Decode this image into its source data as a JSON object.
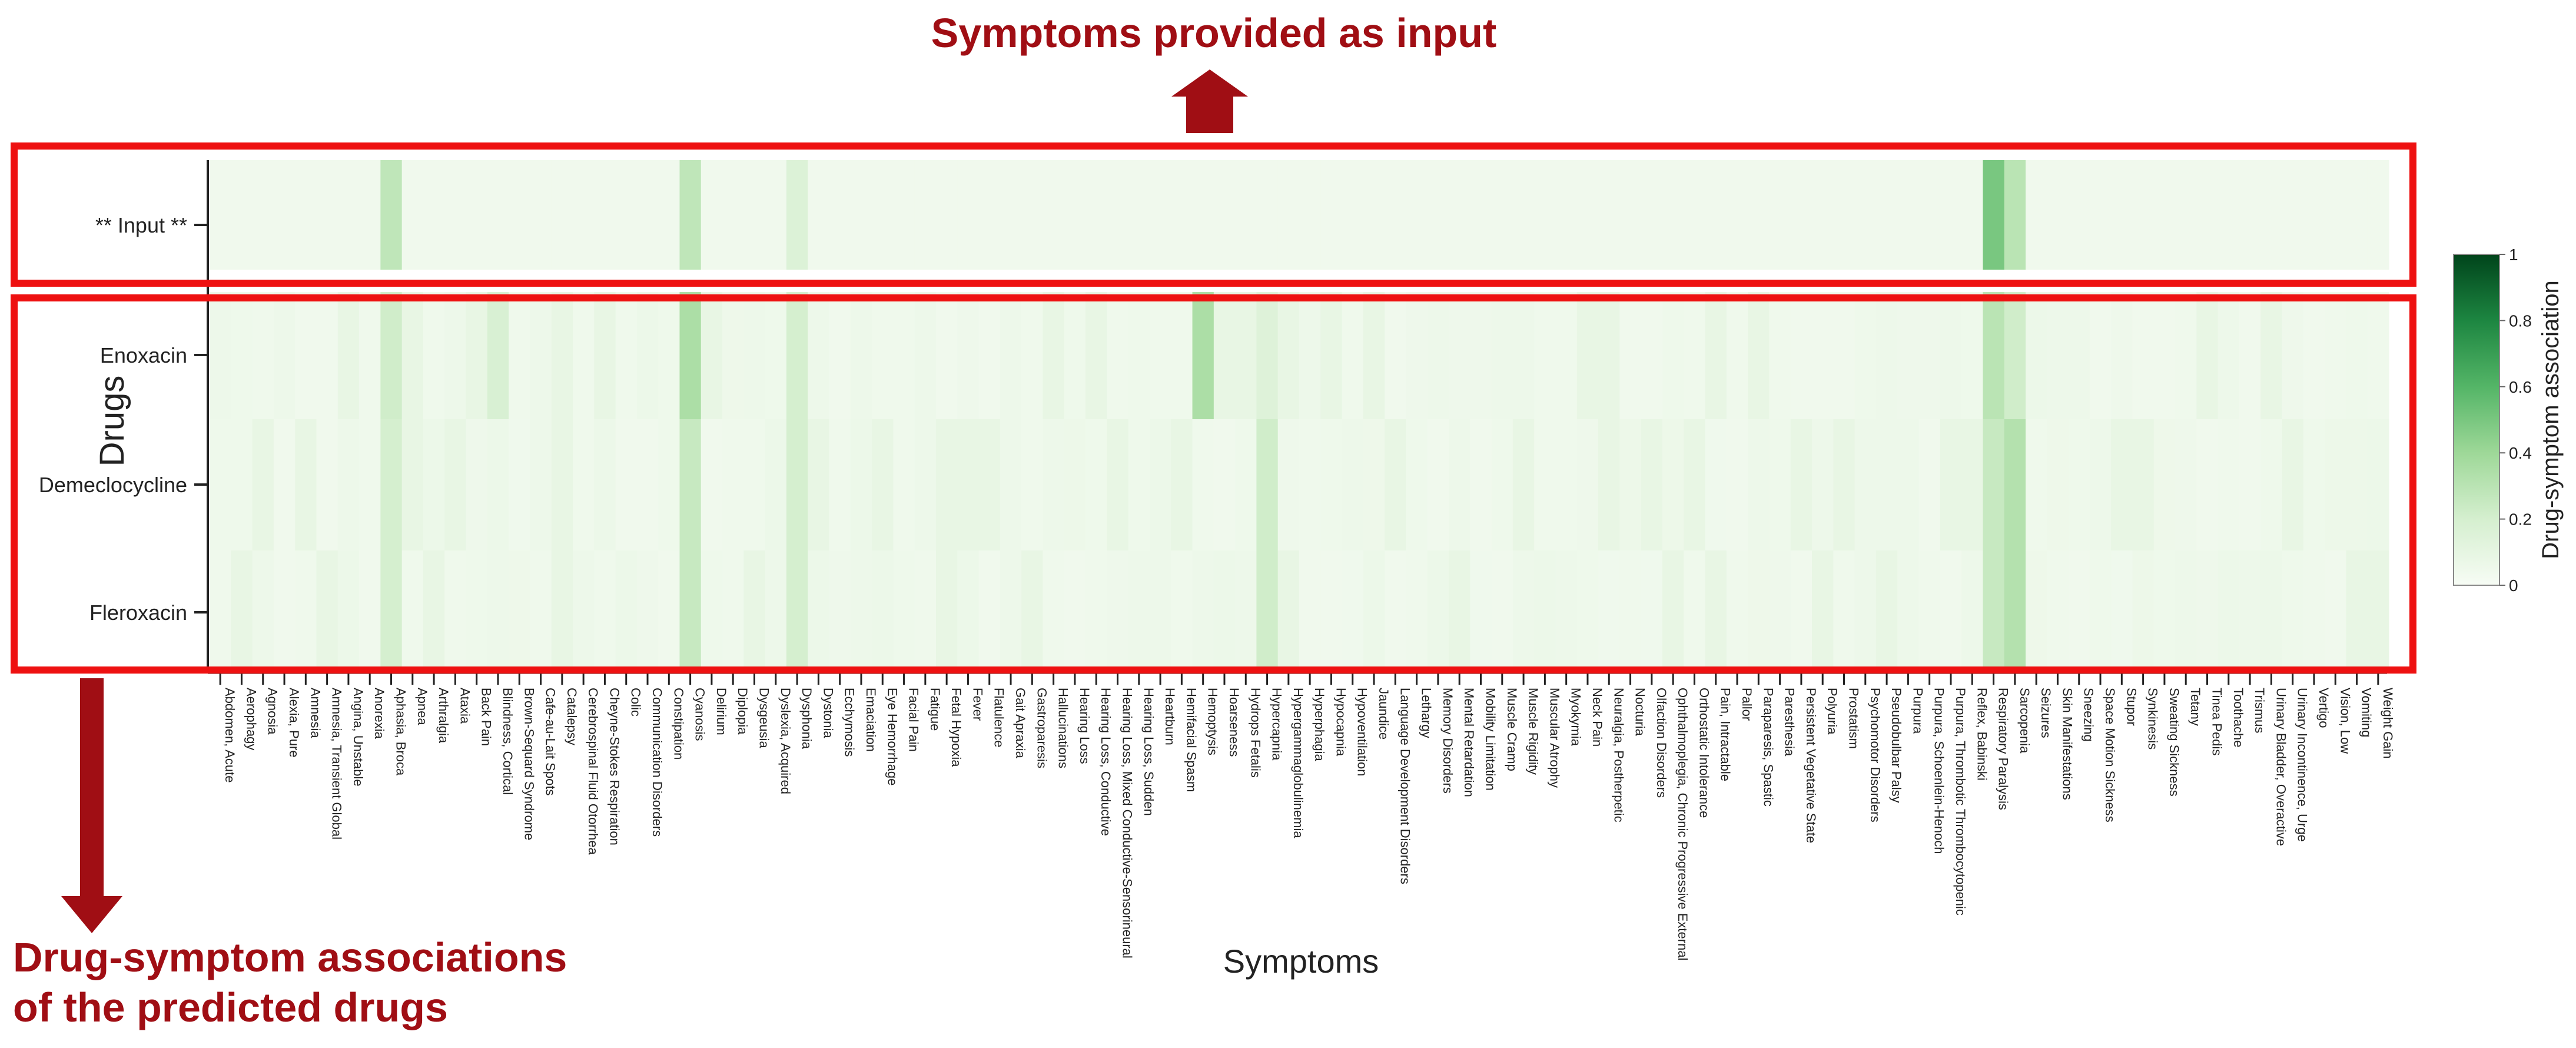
{
  "chart_data": {
    "type": "heatmap",
    "title": "",
    "xlabel": "Symptoms",
    "ylabel": "Drugs",
    "rows": [
      "** Input **",
      "Enoxacin",
      "Demeclocycline",
      "Fleroxacin"
    ],
    "columns": [
      "Abdomen, Acute",
      "Aerophagy",
      "Agnosia",
      "Alexia, Pure",
      "Amnesia",
      "Amnesia, Transient Global",
      "Angina, Unstable",
      "Anorexia",
      "Aphasia, Broca",
      "Apnea",
      "Arthralgia",
      "Ataxia",
      "Back Pain",
      "Blindness, Cortical",
      "Brown-Sequard Syndrome",
      "Cafe-au-Lait Spots",
      "Catalepsy",
      "Cerebrospinal Fluid Otorrhea",
      "Cheyne-Stokes Respiration",
      "Colic",
      "Communication Disorders",
      "Constipation",
      "Cyanosis",
      "Delirium",
      "Diplopia",
      "Dysgeusia",
      "Dyslexia, Acquired",
      "Dysphonia",
      "Dystonia",
      "Ecchymosis",
      "Emaciation",
      "Eye Hemorrhage",
      "Facial Pain",
      "Fatigue",
      "Fetal Hypoxia",
      "Fever",
      "Flatulence",
      "Gait Apraxia",
      "Gastroparesis",
      "Hallucinations",
      "Hearing Loss",
      "Hearing Loss, Conductive",
      "Hearing Loss, Mixed Conductive-Sensorineural",
      "Hearing Loss, Sudden",
      "Heartburn",
      "Hemifacial Spasm",
      "Hemoptysis",
      "Hoarseness",
      "Hydrops Fetalis",
      "Hypercapnia",
      "Hypergammaglobulinemia",
      "Hyperphagia",
      "Hypocapnia",
      "Hypoventilation",
      "Jaundice",
      "Language Development Disorders",
      "Lethargy",
      "Memory Disorders",
      "Mental Retardation",
      "Mobility Limitation",
      "Muscle Cramp",
      "Muscle Rigidity",
      "Muscular Atrophy",
      "Myokymia",
      "Neck Pain",
      "Neuralgia, Postherpetic",
      "Nocturia",
      "Olfaction Disorders",
      "Ophthalmoplegia, Chronic Progressive External",
      "Orthostatic Intolerance",
      "Pain, Intractable",
      "Pallor",
      "Paraparesis, Spastic",
      "Paresthesia",
      "Persistent Vegetative State",
      "Polyuria",
      "Prostatism",
      "Psychomotor Disorders",
      "Pseudobulbar Palsy",
      "Purpura",
      "Purpura, Schoenlein-Henoch",
      "Purpura, Thrombotic Thrombocytopenic",
      "Reflex, Babinski",
      "Respiratory Paralysis",
      "Sarcopenia",
      "Seizures",
      "Skin Manifestations",
      "Sneezing",
      "Space Motion Sickness",
      "Stupor",
      "Synkinesis",
      "Sweating Sickness",
      "Tetany",
      "Tinea Pedis",
      "Toothache",
      "Trismus",
      "Urinary Bladder, Overactive",
      "Urinary Incontinence, Urge",
      "Vertigo",
      "Vision, Low",
      "Vomiting",
      "Weight Gain"
    ],
    "strong_cells": [
      {
        "row": "** Input **",
        "column": "Aphasia, Broca",
        "value": 0.28
      },
      {
        "row": "** Input **",
        "column": "Cyanosis",
        "value": 0.28
      },
      {
        "row": "** Input **",
        "column": "Dysphonia",
        "value": 0.16
      },
      {
        "row": "** Input **",
        "column": "Respiratory Paralysis",
        "value": 0.5
      },
      {
        "row": "** Input **",
        "column": "Sarcopenia",
        "value": 0.3
      },
      {
        "row": "Enoxacin",
        "column": "Aphasia, Broca",
        "value": 0.22
      },
      {
        "row": "Enoxacin",
        "column": "Blindness, Cortical",
        "value": 0.18
      },
      {
        "row": "Enoxacin",
        "column": "Cyanosis",
        "value": 0.35
      },
      {
        "row": "Enoxacin",
        "column": "Dysphonia",
        "value": 0.2
      },
      {
        "row": "Enoxacin",
        "column": "Hemoptysis",
        "value": 0.35
      },
      {
        "row": "Enoxacin",
        "column": "Respiratory Paralysis",
        "value": 0.3
      },
      {
        "row": "Enoxacin",
        "column": "Sarcopenia",
        "value": 0.22
      },
      {
        "row": "Enoxacin",
        "column": "Hypercapnia",
        "value": 0.15
      },
      {
        "row": "Demeclocycline",
        "column": "Aphasia, Broca",
        "value": 0.2
      },
      {
        "row": "Demeclocycline",
        "column": "Cyanosis",
        "value": 0.25
      },
      {
        "row": "Demeclocycline",
        "column": "Dysphonia",
        "value": 0.2
      },
      {
        "row": "Demeclocycline",
        "column": "Hypercapnia",
        "value": 0.22
      },
      {
        "row": "Demeclocycline",
        "column": "Respiratory Paralysis",
        "value": 0.25
      },
      {
        "row": "Demeclocycline",
        "column": "Sarcopenia",
        "value": 0.32
      },
      {
        "row": "Fleroxacin",
        "column": "Aphasia, Broca",
        "value": 0.2
      },
      {
        "row": "Fleroxacin",
        "column": "Cyanosis",
        "value": 0.25
      },
      {
        "row": "Fleroxacin",
        "column": "Dysphonia",
        "value": 0.2
      },
      {
        "row": "Fleroxacin",
        "column": "Hypercapnia",
        "value": 0.22
      },
      {
        "row": "Fleroxacin",
        "column": "Respiratory Paralysis",
        "value": 0.25
      },
      {
        "row": "Fleroxacin",
        "column": "Sarcopenia",
        "value": 0.32
      }
    ],
    "background_value": 0.04,
    "colorbar": {
      "label": "Drug-symptom association",
      "range": [
        0,
        1
      ],
      "ticks": [
        "0",
        "0.2",
        "0.4",
        "0.6",
        "0.8",
        "1"
      ],
      "color_low": "#f7fcf5",
      "color_high": "#00441b"
    },
    "annotations": {
      "top": "Symptoms provided as input",
      "bottom_line1": "Drug-symptom associations",
      "bottom_line2": "of the predicted drugs"
    },
    "colors": {
      "annotation": "#a00e14",
      "box": "#ee1111"
    }
  }
}
